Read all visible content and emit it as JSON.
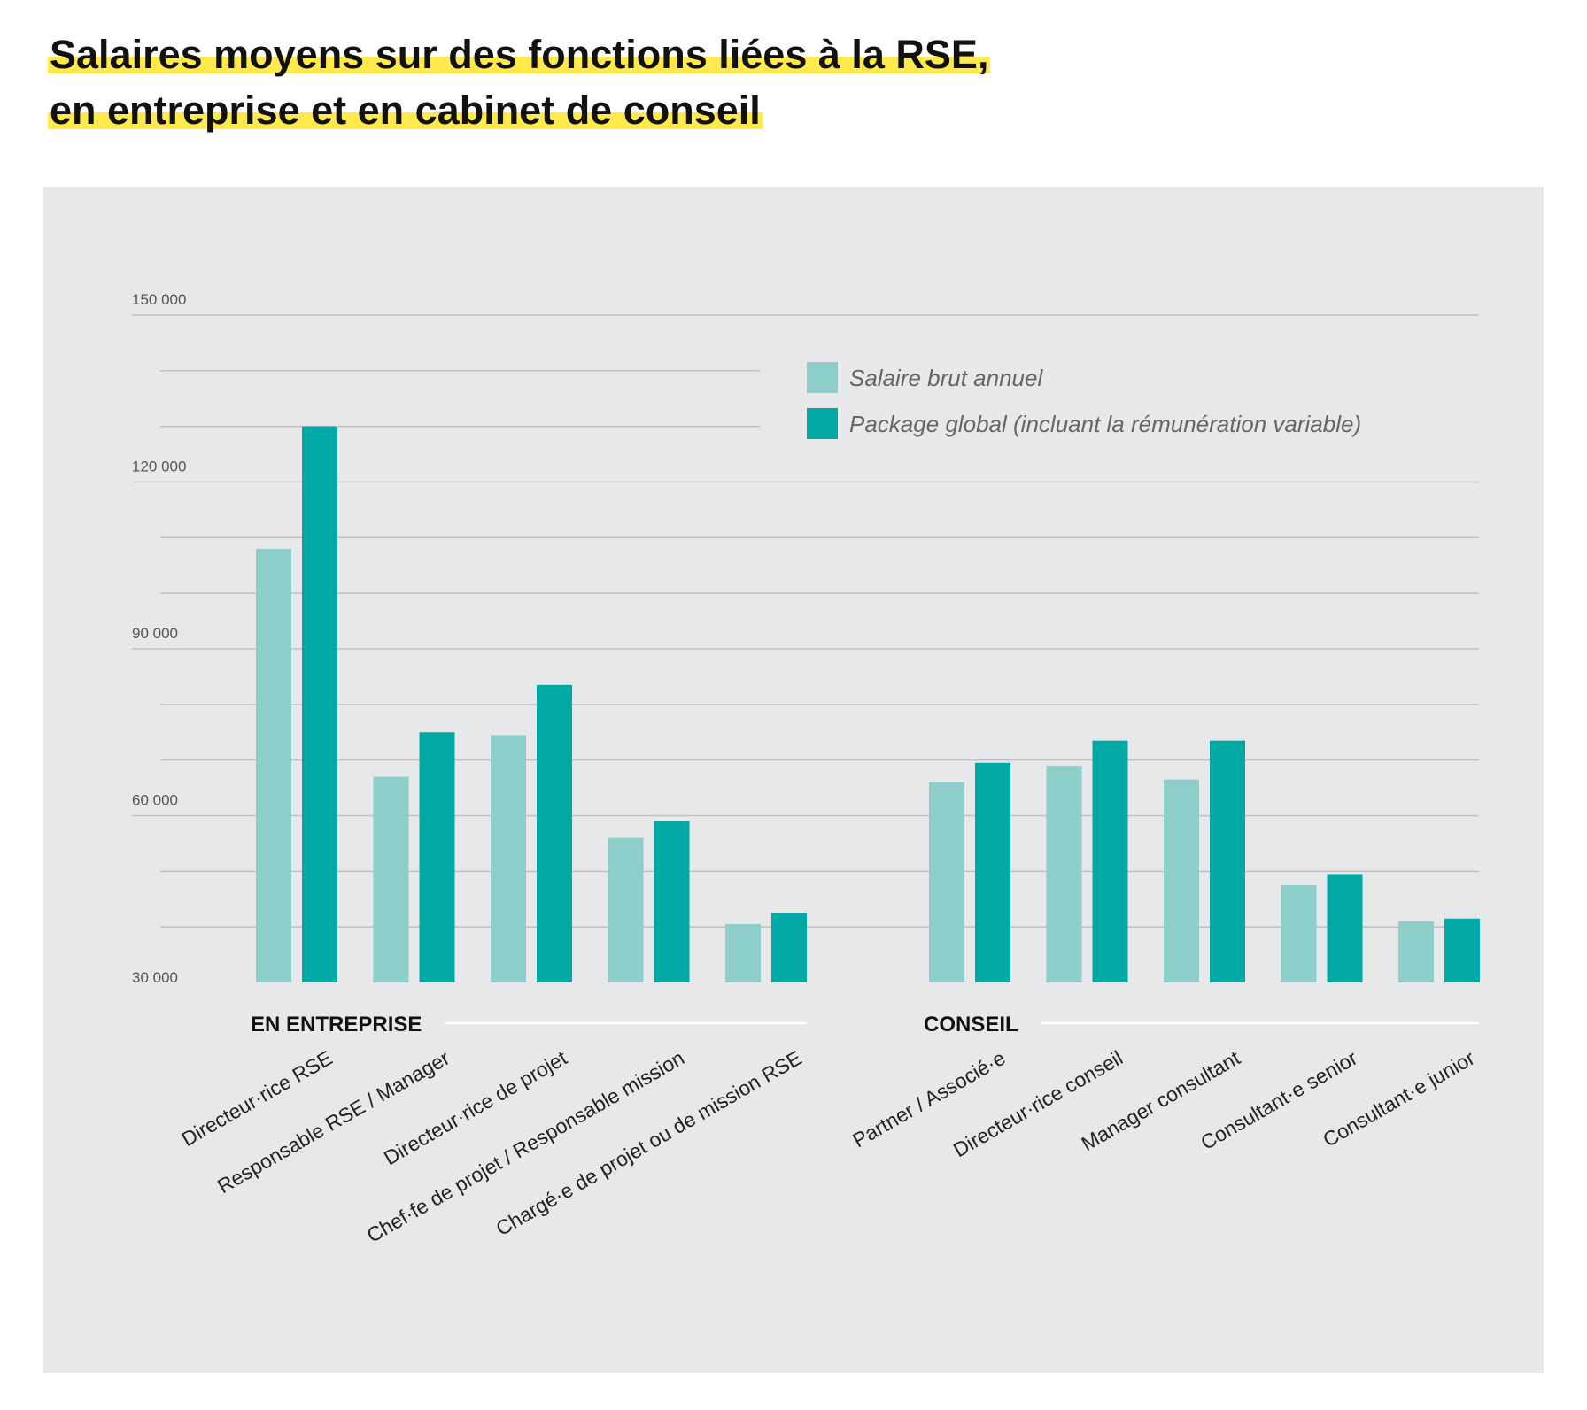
{
  "title_lines": [
    "Salaires moyens sur des fonctions liées à la RSE,",
    "en entreprise et en cabinet de conseil"
  ],
  "colors": {
    "highlight": "#ffe94d",
    "panel": "#e7e8ea",
    "salaire": "#8dcdca",
    "package": "#00a9a4"
  },
  "chart_data": {
    "type": "bar",
    "title": "Salaires moyens sur des fonctions liées à la RSE, en entreprise et en cabinet de conseil",
    "ylim": [
      30000,
      150000
    ],
    "yticks": [
      30000,
      60000,
      90000,
      120000,
      150000
    ],
    "ytick_labels": [
      "30 000",
      "60 000",
      "90 000",
      "120 000",
      "150 000"
    ],
    "grid": true,
    "legend_position": "top-right",
    "groups": [
      {
        "label": "EN ENTREPRISE",
        "categories": [
          "Directeur·rice RSE",
          "Responsable RSE / Manager",
          "Directeur·rice de projet",
          "Chef·fe de projet / Responsable mission",
          "Chargé·e de projet ou de mission RSE"
        ]
      },
      {
        "label": "CONSEIL",
        "categories": [
          "Partner / Associé·e",
          "Directeur·rice conseil",
          "Manager consultant",
          "Consultant·e senior",
          "Consultant·e junior"
        ]
      }
    ],
    "series": [
      {
        "name": "Salaire brut annuel",
        "values": [
          108000,
          67000,
          74500,
          56000,
          40500,
          66000,
          69000,
          66500,
          47500,
          41000
        ]
      },
      {
        "name": "Package global (incluant la rémunération variable)",
        "values": [
          130000,
          75000,
          83500,
          59000,
          42500,
          69500,
          73500,
          73500,
          49500,
          41500
        ]
      }
    ]
  }
}
